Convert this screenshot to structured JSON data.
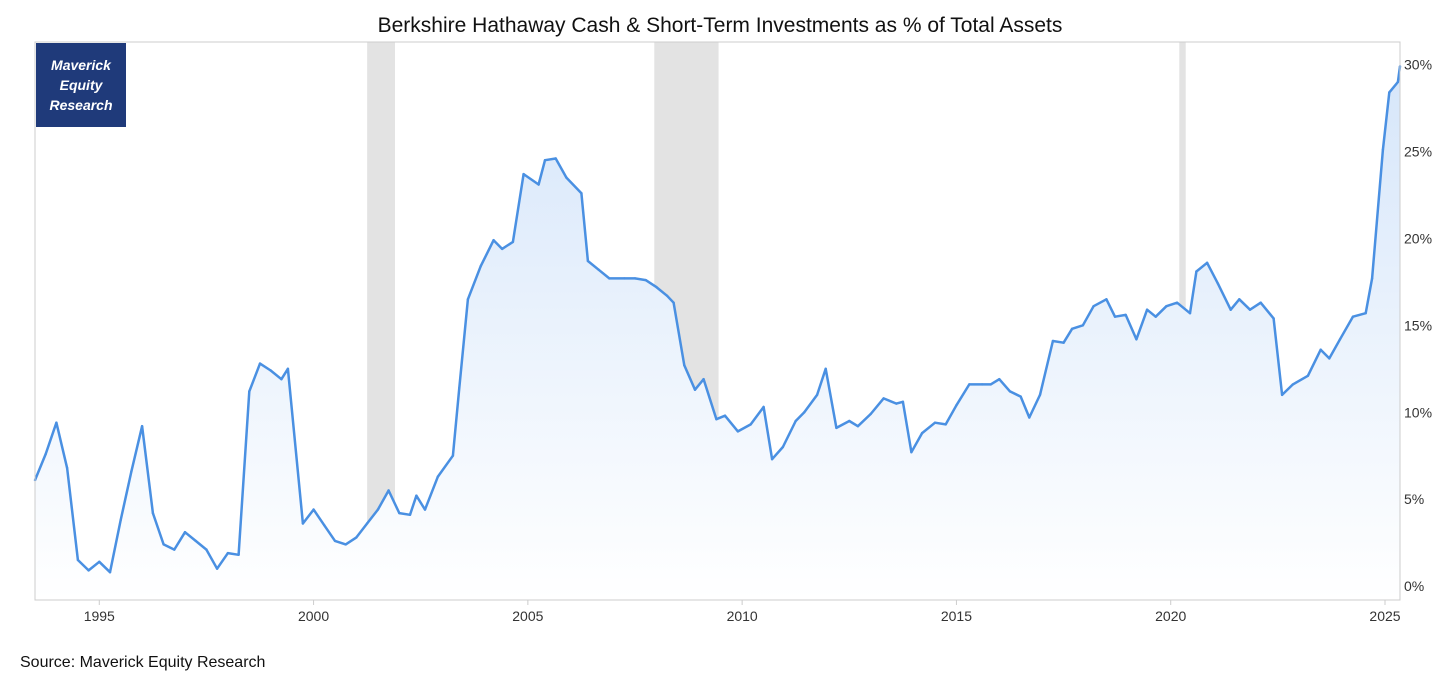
{
  "chart_data": {
    "type": "area",
    "title": "Berkshire Hathaway Cash & Short-Term Investments as % of Total Assets",
    "xlabel": "",
    "ylabel": "",
    "xlim": [
      1993.5,
      2025.35
    ],
    "ylim": [
      -0.8,
      31.3
    ],
    "x_ticks": [
      1995,
      2000,
      2005,
      2010,
      2015,
      2020,
      2025
    ],
    "x_tick_labels": [
      "1995",
      "2000",
      "2005",
      "2010",
      "2015",
      "2020",
      "2025"
    ],
    "y_ticks": [
      0,
      5,
      10,
      15,
      20,
      25,
      30
    ],
    "y_tick_labels": [
      "0%",
      "5%",
      "10%",
      "15%",
      "20%",
      "25%",
      "30%"
    ],
    "y_axis_side": "right",
    "grid": false,
    "recession_periods": [
      [
        2001.25,
        2001.9
      ],
      [
        2007.95,
        2009.45
      ],
      [
        2020.2,
        2020.35
      ]
    ],
    "series": [
      {
        "values": [
          [
            1993.5,
            6.1
          ],
          [
            1993.75,
            7.6
          ],
          [
            1994.0,
            9.4
          ],
          [
            1994.25,
            6.8
          ],
          [
            1994.5,
            1.5
          ],
          [
            1994.75,
            0.9
          ],
          [
            1995.0,
            1.4
          ],
          [
            1995.25,
            0.8
          ],
          [
            1995.5,
            3.8
          ],
          [
            1995.75,
            6.6
          ],
          [
            1996.0,
            9.2
          ],
          [
            1996.25,
            4.2
          ],
          [
            1996.5,
            2.4
          ],
          [
            1996.75,
            2.1
          ],
          [
            1997.0,
            3.1
          ],
          [
            1997.25,
            2.6
          ],
          [
            1997.5,
            2.1
          ],
          [
            1997.75,
            1.0
          ],
          [
            1998.0,
            1.9
          ],
          [
            1998.25,
            1.8
          ],
          [
            1998.5,
            11.2
          ],
          [
            1998.75,
            12.8
          ],
          [
            1999.0,
            12.4
          ],
          [
            1999.25,
            11.9
          ],
          [
            1999.4,
            12.5
          ],
          [
            1999.75,
            3.6
          ],
          [
            2000.0,
            4.4
          ],
          [
            2000.25,
            3.5
          ],
          [
            2000.5,
            2.6
          ],
          [
            2000.75,
            2.4
          ],
          [
            2001.0,
            2.8
          ],
          [
            2001.25,
            3.6
          ],
          [
            2001.5,
            4.4
          ],
          [
            2001.75,
            5.5
          ],
          [
            2002.0,
            4.2
          ],
          [
            2002.25,
            4.1
          ],
          [
            2002.4,
            5.2
          ],
          [
            2002.6,
            4.4
          ],
          [
            2002.9,
            6.3
          ],
          [
            2003.25,
            7.5
          ],
          [
            2003.4,
            11.4
          ],
          [
            2003.6,
            16.5
          ],
          [
            2003.9,
            18.4
          ],
          [
            2004.2,
            19.9
          ],
          [
            2004.4,
            19.4
          ],
          [
            2004.65,
            19.8
          ],
          [
            2004.9,
            23.7
          ],
          [
            2005.25,
            23.1
          ],
          [
            2005.4,
            24.5
          ],
          [
            2005.65,
            24.6
          ],
          [
            2005.9,
            23.5
          ],
          [
            2006.25,
            22.6
          ],
          [
            2006.4,
            18.7
          ],
          [
            2006.65,
            18.2
          ],
          [
            2006.9,
            17.7
          ],
          [
            2007.25,
            17.7
          ],
          [
            2007.5,
            17.7
          ],
          [
            2007.75,
            17.6
          ],
          [
            2008.0,
            17.2
          ],
          [
            2008.25,
            16.7
          ],
          [
            2008.4,
            16.3
          ],
          [
            2008.65,
            12.7
          ],
          [
            2008.9,
            11.3
          ],
          [
            2009.1,
            11.9
          ],
          [
            2009.4,
            9.6
          ],
          [
            2009.6,
            9.8
          ],
          [
            2009.9,
            8.9
          ],
          [
            2010.2,
            9.3
          ],
          [
            2010.5,
            10.3
          ],
          [
            2010.7,
            7.3
          ],
          [
            2010.95,
            8.0
          ],
          [
            2011.25,
            9.5
          ],
          [
            2011.45,
            10.0
          ],
          [
            2011.75,
            11.0
          ],
          [
            2011.95,
            12.5
          ],
          [
            2012.2,
            9.1
          ],
          [
            2012.5,
            9.5
          ],
          [
            2012.7,
            9.2
          ],
          [
            2013.0,
            9.9
          ],
          [
            2013.3,
            10.8
          ],
          [
            2013.6,
            10.5
          ],
          [
            2013.75,
            10.6
          ],
          [
            2013.95,
            7.7
          ],
          [
            2014.2,
            8.8
          ],
          [
            2014.5,
            9.4
          ],
          [
            2014.75,
            9.3
          ],
          [
            2015.0,
            10.4
          ],
          [
            2015.3,
            11.6
          ],
          [
            2015.6,
            11.6
          ],
          [
            2015.8,
            11.6
          ],
          [
            2016.0,
            11.9
          ],
          [
            2016.25,
            11.2
          ],
          [
            2016.5,
            10.9
          ],
          [
            2016.7,
            9.7
          ],
          [
            2016.95,
            11.0
          ],
          [
            2017.25,
            14.1
          ],
          [
            2017.5,
            14.0
          ],
          [
            2017.7,
            14.8
          ],
          [
            2017.95,
            15.0
          ],
          [
            2018.2,
            16.1
          ],
          [
            2018.5,
            16.5
          ],
          [
            2018.7,
            15.5
          ],
          [
            2018.95,
            15.6
          ],
          [
            2019.2,
            14.2
          ],
          [
            2019.45,
            15.9
          ],
          [
            2019.65,
            15.5
          ],
          [
            2019.9,
            16.1
          ],
          [
            2020.15,
            16.3
          ],
          [
            2020.45,
            15.7
          ],
          [
            2020.6,
            18.1
          ],
          [
            2020.85,
            18.6
          ],
          [
            2021.1,
            17.4
          ],
          [
            2021.4,
            15.9
          ],
          [
            2021.6,
            16.5
          ],
          [
            2021.85,
            15.9
          ],
          [
            2022.1,
            16.3
          ],
          [
            2022.4,
            15.4
          ],
          [
            2022.6,
            11.0
          ],
          [
            2022.85,
            11.6
          ],
          [
            2023.2,
            12.1
          ],
          [
            2023.5,
            13.6
          ],
          [
            2023.7,
            13.1
          ],
          [
            2023.95,
            14.2
          ],
          [
            2024.25,
            15.5
          ],
          [
            2024.55,
            15.7
          ],
          [
            2024.7,
            17.7
          ],
          [
            2024.95,
            25.1
          ],
          [
            2025.1,
            28.4
          ],
          [
            2025.3,
            29.0
          ],
          [
            2025.35,
            29.9
          ]
        ],
        "color": "#4a90e2"
      }
    ],
    "colors": {
      "line": "#4a90e2",
      "area_top": "#d6e6fa",
      "area_bottom": "#ffffff",
      "recession": "#e3e3e3",
      "zero_line": "#bbbbbb",
      "frame": "#cccccc"
    },
    "logo_text": [
      "Maverick",
      "Equity",
      "Research"
    ],
    "logo_color": "#1f3a7a",
    "source": "Source: Maverick Equity Research"
  }
}
